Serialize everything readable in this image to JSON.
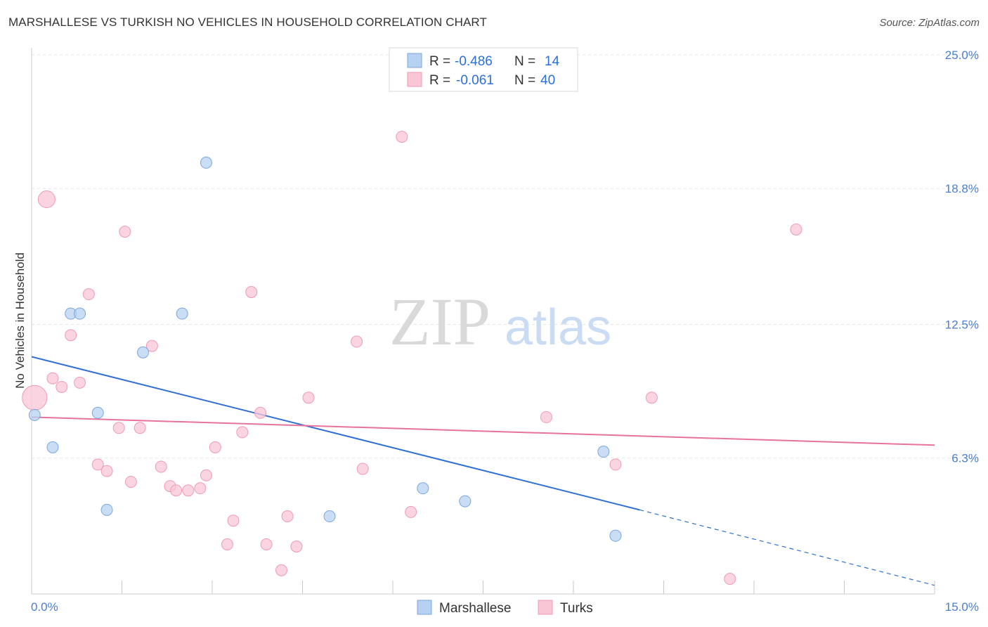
{
  "title": "MARSHALLESE VS TURKISH NO VEHICLES IN HOUSEHOLD CORRELATION CHART",
  "source": "Source: ZipAtlas.com",
  "colors": {
    "marshallese_fill": "#b7d1f2",
    "marshallese_stroke": "#7aa6e0",
    "marshallese_line": "#2f6fd6",
    "turks_fill": "#f8c6d5",
    "turks_stroke": "#ee9bb5",
    "turks_line": "#e8739a",
    "tick_label": "#4a7fd0"
  },
  "legend": {
    "rows": [
      {
        "r_label": "R =",
        "r_value": "-0.486",
        "n_label": "N =",
        "n_value": "14"
      },
      {
        "r_label": "R =",
        "r_value": "-0.061",
        "n_label": "N =",
        "n_value": "40"
      }
    ]
  },
  "watermark": {
    "zip": "ZIP",
    "atlas": "atlas"
  },
  "chart_data": {
    "type": "scatter",
    "xlabel": "",
    "ylabel": "No Vehicles in Household",
    "xlim": [
      0,
      15
    ],
    "ylim": [
      0,
      25
    ],
    "x_tick_labels": [
      "0.0%",
      "15.0%"
    ],
    "y_ticks": [
      6.3,
      12.5,
      18.8,
      25.0
    ],
    "y_tick_labels": [
      "6.3%",
      "12.5%",
      "18.8%",
      "25.0%"
    ],
    "grid": true,
    "legend_position": "top-center",
    "series": [
      {
        "name": "Marshallese",
        "points": [
          {
            "x": 0.05,
            "y": 8.3,
            "s": 1
          },
          {
            "x": 0.35,
            "y": 6.8,
            "s": 1
          },
          {
            "x": 0.65,
            "y": 13.0,
            "s": 1
          },
          {
            "x": 0.8,
            "y": 13.0,
            "s": 1
          },
          {
            "x": 1.1,
            "y": 8.4,
            "s": 1
          },
          {
            "x": 1.25,
            "y": 3.9,
            "s": 1
          },
          {
            "x": 1.85,
            "y": 11.2,
            "s": 1
          },
          {
            "x": 2.5,
            "y": 13.0,
            "s": 1
          },
          {
            "x": 2.9,
            "y": 20.0,
            "s": 1
          },
          {
            "x": 4.95,
            "y": 3.6,
            "s": 1
          },
          {
            "x": 6.5,
            "y": 4.9,
            "s": 1
          },
          {
            "x": 7.2,
            "y": 4.3,
            "s": 1
          },
          {
            "x": 9.5,
            "y": 6.6,
            "s": 1
          },
          {
            "x": 9.7,
            "y": 2.7,
            "s": 1
          }
        ],
        "trend": {
          "x0": 0.0,
          "y0": 11.0,
          "x1": 10.1,
          "y1": 3.9,
          "x_dash_end": 15.0,
          "y_dash_end": 0.4
        }
      },
      {
        "name": "Turks",
        "points": [
          {
            "x": 0.05,
            "y": 9.1,
            "s": 2.2
          },
          {
            "x": 0.25,
            "y": 18.3,
            "s": 1.5
          },
          {
            "x": 0.35,
            "y": 10.0,
            "s": 1
          },
          {
            "x": 0.5,
            "y": 9.6,
            "s": 1
          },
          {
            "x": 0.65,
            "y": 12.0,
            "s": 1
          },
          {
            "x": 0.8,
            "y": 9.8,
            "s": 1
          },
          {
            "x": 0.95,
            "y": 13.9,
            "s": 1
          },
          {
            "x": 1.1,
            "y": 6.0,
            "s": 1
          },
          {
            "x": 1.25,
            "y": 5.7,
            "s": 1
          },
          {
            "x": 1.45,
            "y": 7.7,
            "s": 1
          },
          {
            "x": 1.55,
            "y": 16.8,
            "s": 1
          },
          {
            "x": 1.65,
            "y": 5.2,
            "s": 1
          },
          {
            "x": 1.8,
            "y": 7.7,
            "s": 1
          },
          {
            "x": 2.0,
            "y": 11.5,
            "s": 1
          },
          {
            "x": 2.15,
            "y": 5.9,
            "s": 1
          },
          {
            "x": 2.3,
            "y": 5.0,
            "s": 1
          },
          {
            "x": 2.4,
            "y": 4.8,
            "s": 1
          },
          {
            "x": 2.6,
            "y": 4.8,
            "s": 1
          },
          {
            "x": 2.8,
            "y": 4.9,
            "s": 1
          },
          {
            "x": 2.9,
            "y": 5.5,
            "s": 1
          },
          {
            "x": 3.05,
            "y": 6.8,
            "s": 1
          },
          {
            "x": 3.25,
            "y": 2.3,
            "s": 1
          },
          {
            "x": 3.35,
            "y": 3.4,
            "s": 1
          },
          {
            "x": 3.5,
            "y": 7.5,
            "s": 1
          },
          {
            "x": 3.65,
            "y": 14.0,
            "s": 1
          },
          {
            "x": 3.8,
            "y": 8.4,
            "s": 1
          },
          {
            "x": 3.9,
            "y": 2.3,
            "s": 1
          },
          {
            "x": 4.15,
            "y": 1.1,
            "s": 1
          },
          {
            "x": 4.25,
            "y": 3.6,
            "s": 1
          },
          {
            "x": 4.4,
            "y": 2.2,
            "s": 1
          },
          {
            "x": 4.6,
            "y": 9.1,
            "s": 1
          },
          {
            "x": 5.4,
            "y": 11.7,
            "s": 1
          },
          {
            "x": 5.5,
            "y": 5.8,
            "s": 1
          },
          {
            "x": 6.3,
            "y": 3.8,
            "s": 1
          },
          {
            "x": 6.15,
            "y": 21.2,
            "s": 1
          },
          {
            "x": 8.55,
            "y": 8.2,
            "s": 1
          },
          {
            "x": 9.7,
            "y": 6.0,
            "s": 1
          },
          {
            "x": 10.3,
            "y": 9.1,
            "s": 1
          },
          {
            "x": 11.6,
            "y": 0.7,
            "s": 1
          },
          {
            "x": 12.7,
            "y": 16.9,
            "s": 1
          }
        ],
        "trend": {
          "x0": 0.0,
          "y0": 8.2,
          "x1": 15.0,
          "y1": 6.9
        }
      }
    ]
  },
  "bottom_legend": [
    "Marshallese",
    "Turks"
  ]
}
